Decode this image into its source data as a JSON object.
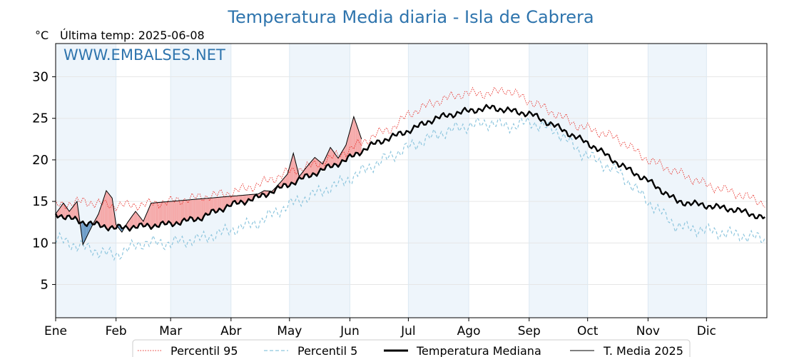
{
  "chart_data": {
    "type": "line",
    "title": "Temperatura Media diaria - Isla de Cabrera",
    "unit": "°C",
    "subtitle": "Última temp: 2025-06-08",
    "watermark": "WWW.EMBALSES.NET",
    "x_tick_labels": [
      "Ene",
      "Feb",
      "Mar",
      "Abr",
      "May",
      "Jun",
      "Jul",
      "Ago",
      "Sep",
      "Oct",
      "Nov",
      "Dic"
    ],
    "y_ticks": [
      5,
      10,
      15,
      20,
      25,
      30
    ],
    "ylim": [
      1,
      34
    ],
    "grid": true,
    "legend_position": "bottom",
    "alternate_month_shading": true,
    "colors": {
      "p95": "#e8312b",
      "p5": "#8ec6de",
      "median": "#000000",
      "media2025": "#000000",
      "above_fill": "#f5aaaa",
      "below_fill": "#6f9ec9",
      "month_band": "#eef5fb",
      "title": "#2e74ad"
    },
    "series": [
      {
        "name": "Percentil 95",
        "style": "dotted-red",
        "x": [
          1,
          15,
          31,
          45,
          60,
          75,
          90,
          105,
          120,
          135,
          150,
          165,
          175,
          182,
          196,
          210,
          225,
          232,
          245,
          258,
          270,
          278,
          290,
          305,
          320,
          335,
          350,
          365
        ],
        "y": [
          14.5,
          15.0,
          14.5,
          14.6,
          15.0,
          15.5,
          16.0,
          17.0,
          18.5,
          19.5,
          21.0,
          23.0,
          24.0,
          25.5,
          27.0,
          28.0,
          28.0,
          28.5,
          27.0,
          25.5,
          24.0,
          23.5,
          22.5,
          20.0,
          18.5,
          17.0,
          16.0,
          14.8
        ]
      },
      {
        "name": "Percentil 5",
        "style": "dashed-lightblue",
        "x": [
          1,
          15,
          31,
          45,
          60,
          75,
          90,
          105,
          120,
          135,
          150,
          165,
          182,
          196,
          210,
          225,
          232,
          245,
          258,
          270,
          278,
          290,
          305,
          320,
          335,
          350,
          365
        ],
        "y": [
          10.5,
          9.5,
          8.5,
          10.0,
          10.0,
          10.5,
          11.5,
          12.5,
          14.5,
          16.0,
          17.5,
          19.5,
          21.5,
          23.0,
          24.0,
          24.5,
          24.0,
          24.5,
          23.5,
          21.0,
          20.0,
          18.5,
          15.0,
          12.0,
          11.5,
          11.0,
          10.5
        ]
      },
      {
        "name": "Temperatura Mediana",
        "style": "thick-black",
        "x": [
          1,
          15,
          31,
          45,
          60,
          75,
          90,
          105,
          120,
          135,
          150,
          165,
          182,
          196,
          210,
          225,
          232,
          245,
          258,
          270,
          278,
          290,
          305,
          320,
          335,
          350,
          365
        ],
        "y": [
          13.5,
          12.5,
          11.8,
          12.0,
          12.3,
          13.0,
          14.5,
          15.5,
          17.0,
          18.5,
          20.0,
          22.0,
          23.5,
          25.0,
          25.8,
          26.3,
          26.0,
          25.5,
          24.0,
          22.5,
          21.5,
          19.5,
          17.5,
          15.0,
          14.5,
          14.0,
          13.0
        ]
      },
      {
        "name": "T. Media 2025",
        "style": "thin-black",
        "x": [
          1,
          5,
          8,
          12,
          15,
          20,
          23,
          27,
          30,
          32,
          35,
          38,
          42,
          46,
          50,
          105,
          108,
          112,
          116,
          120,
          123,
          126,
          130,
          134,
          138,
          142,
          146,
          150,
          154,
          158
        ],
        "y": [
          13.5,
          14.8,
          13.8,
          15.0,
          9.8,
          12.2,
          13.5,
          16.3,
          15.4,
          12.2,
          11.3,
          12.5,
          13.8,
          12.6,
          14.8,
          15.9,
          16.3,
          16.2,
          17.2,
          18.3,
          20.8,
          18.0,
          19.2,
          20.3,
          19.5,
          21.5,
          20.2,
          21.8,
          25.2,
          22.5
        ]
      }
    ]
  },
  "legend": [
    {
      "key": "p95",
      "label": "Percentil 95"
    },
    {
      "key": "p5",
      "label": "Percentil 5"
    },
    {
      "key": "median",
      "label": "Temperatura Mediana"
    },
    {
      "key": "media2025",
      "label": "T. Media 2025"
    }
  ]
}
